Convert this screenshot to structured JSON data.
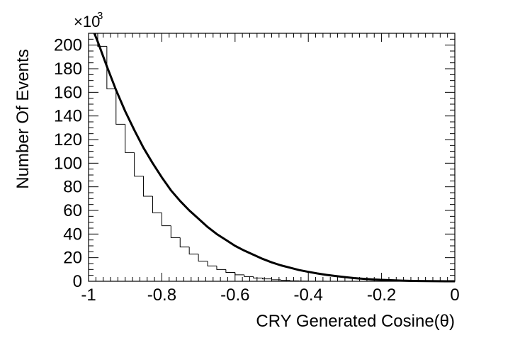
{
  "chart_data": {
    "type": "bar",
    "subtype": "histogram-with-fit",
    "title": "",
    "xlabel": "CRY Generated Cosine(θ)",
    "ylabel": "Number Of Events",
    "y_multiplier_label": "×10",
    "y_multiplier_exponent": "3",
    "xlim": [
      -1,
      0
    ],
    "ylim": [
      0,
      210
    ],
    "x_major_ticks": [
      -1,
      -0.8,
      -0.6,
      -0.4,
      -0.2,
      0
    ],
    "x_tick_labels": [
      "-1",
      "-0.8",
      "-0.6",
      "-0.4",
      "-0.2",
      "0"
    ],
    "y_major_ticks": [
      0,
      20,
      40,
      60,
      80,
      100,
      120,
      140,
      160,
      180,
      200
    ],
    "y_tick_labels": [
      "0",
      "20",
      "40",
      "60",
      "80",
      "100",
      "120",
      "140",
      "160",
      "180",
      "200"
    ],
    "bin_width": 0.025,
    "bin_edges_start": -1,
    "series": [
      {
        "kind": "histogram",
        "values": [
          215,
          199,
          163,
          133,
          109,
          89,
          72,
          58,
          47,
          37,
          29,
          23,
          17,
          13,
          10,
          7.5,
          5.5,
          4,
          2.8,
          2,
          1.3,
          0.8,
          0.4,
          0.2,
          0.1,
          0.05,
          0.02,
          0.01,
          0,
          0,
          0,
          0,
          0,
          0,
          0,
          0,
          0,
          0,
          0,
          0
        ]
      },
      {
        "kind": "fit-curve",
        "x": [
          -1,
          -0.975,
          -0.95,
          -0.925,
          -0.9,
          -0.875,
          -0.85,
          -0.825,
          -0.8,
          -0.775,
          -0.75,
          -0.725,
          -0.7,
          -0.675,
          -0.65,
          -0.625,
          -0.6,
          -0.575,
          -0.55,
          -0.525,
          -0.5,
          -0.475,
          -0.45,
          -0.425,
          -0.4,
          -0.375,
          -0.35,
          -0.325,
          -0.3,
          -0.275,
          -0.25,
          -0.225,
          -0.2,
          -0.175,
          -0.15,
          -0.125,
          -0.1,
          -0.075,
          -0.05,
          -0.025,
          0
        ],
        "y": [
          222,
          203,
          182,
          162,
          144,
          128,
          113,
          100,
          88,
          77,
          68,
          60,
          53,
          46,
          40,
          35,
          30,
          26,
          22.5,
          19,
          16,
          13.5,
          11.5,
          9.5,
          8,
          6.6,
          5.4,
          4.4,
          3.5,
          2.7,
          2.1,
          1.6,
          1.2,
          0.9,
          0.6,
          0.4,
          0.25,
          0.15,
          0.08,
          0.03,
          0
        ]
      }
    ],
    "grid": false,
    "legend": "none"
  }
}
